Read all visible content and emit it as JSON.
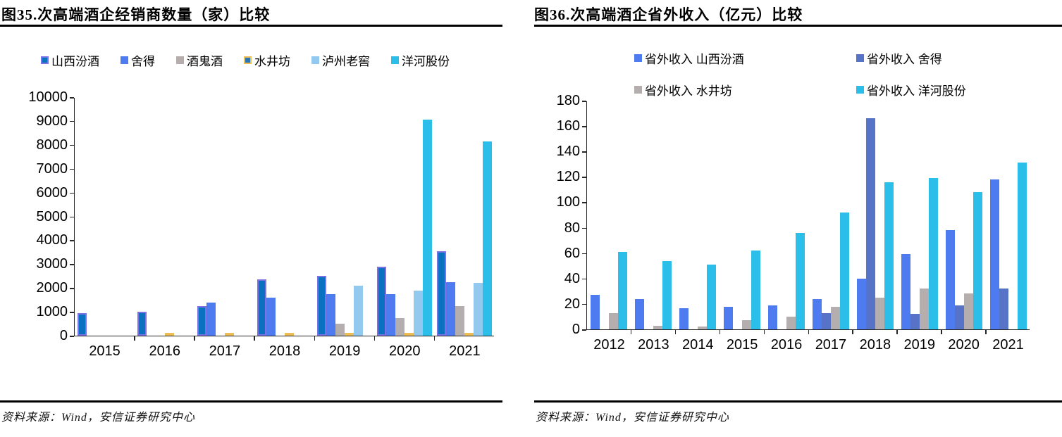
{
  "charts": [
    {
      "title": "图35.次高端酒企经销商数量（家）比较",
      "source": "资料来源：Wind，安信证券研究中心",
      "chart_data": {
        "type": "bar",
        "categories": [
          "2015",
          "2016",
          "2017",
          "2018",
          "2019",
          "2020",
          "2021"
        ],
        "series": [
          {
            "name": "山西汾酒",
            "color": "#0A70C0",
            "border": "#7D72E3",
            "values": [
              950,
              1000,
              1250,
              2350,
              2500,
              2900,
              3550
            ]
          },
          {
            "name": "舍得",
            "color": "#4E7CF0",
            "values": [
              null,
              null,
              1400,
              1600,
              1750,
              1750,
              2250
            ]
          },
          {
            "name": "酒鬼酒",
            "color": "#B5AEAE",
            "values": [
              null,
              null,
              null,
              null,
              500,
              750,
              1250
            ]
          },
          {
            "name": "水井坊",
            "color": "#2E75B6",
            "border": "#EDBE55",
            "values": [
              null,
              60,
              45,
              45,
              45,
              45,
              45
            ]
          },
          {
            "name": "泸州老窖",
            "color": "#93C9EE",
            "values": [
              null,
              null,
              null,
              null,
              2100,
              1900,
              2200
            ]
          },
          {
            "name": "洋河股份",
            "color": "#2ABEE8",
            "values": [
              null,
              null,
              null,
              null,
              null,
              9050,
              8150
            ]
          }
        ],
        "title": "次高端酒企经销商数量（家）比较",
        "xlabel": "",
        "ylabel": "",
        "ylim": [
          0,
          10000
        ],
        "ytick_step": 1000,
        "grid": false,
        "legend_position": "top"
      }
    },
    {
      "title": "图36.次高端酒企省外收入（亿元）比较",
      "source": "资料来源：Wind，安信证券研究中心",
      "chart_data": {
        "type": "bar",
        "categories": [
          "2012",
          "2013",
          "2014",
          "2015",
          "2016",
          "2017",
          "2018",
          "2019",
          "2020",
          "2021"
        ],
        "series": [
          {
            "name": "省外收入 山西汾酒",
            "color": "#4E7CF0",
            "values": [
              27,
              24,
              16.5,
              17.5,
              19,
              24,
              40,
              59,
              78,
              118
            ]
          },
          {
            "name": "省外收入 舍得",
            "color": "#5673C8",
            "values": [
              null,
              null,
              null,
              null,
              null,
              13,
              166,
              12,
              19,
              32
            ]
          },
          {
            "name": "省外收入 水井坊",
            "color": "#B5AEAE",
            "values": [
              13,
              3,
              2.5,
              7,
              10,
              17.5,
              25,
              32,
              28,
              null
            ]
          },
          {
            "name": "省外收入 洋河股份",
            "color": "#2ABEE8",
            "values": [
              61,
              54,
              51,
              62,
              76,
              92,
              116,
              119,
              108,
              131
            ]
          }
        ],
        "title": "次高端酒企省外收入（亿元）比较",
        "xlabel": "",
        "ylabel": "",
        "ylim": [
          0,
          180
        ],
        "ytick_step": 20,
        "grid": false,
        "legend_position": "top"
      }
    }
  ]
}
